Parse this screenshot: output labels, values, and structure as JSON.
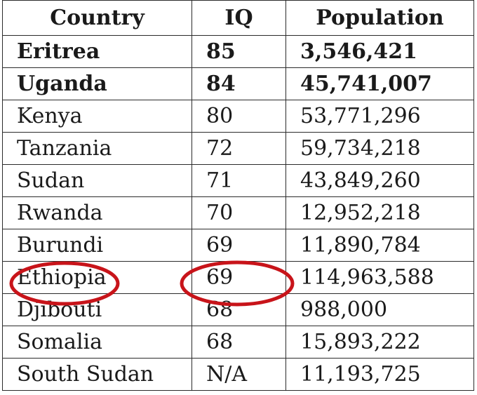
{
  "table": {
    "headers": [
      "Country",
      "IQ",
      "Population"
    ],
    "rows": [
      {
        "country": "Eritrea",
        "iq": "85",
        "population": "3,546,421",
        "bold": true
      },
      {
        "country": "Uganda",
        "iq": "84",
        "population": "45,741,007",
        "bold": true
      },
      {
        "country": "Kenya",
        "iq": "80",
        "population": "53,771,296",
        "bold": false
      },
      {
        "country": "Tanzania",
        "iq": "72",
        "population": "59,734,218",
        "bold": false
      },
      {
        "country": "Sudan",
        "iq": "71",
        "population": "43,849,260",
        "bold": false
      },
      {
        "country": "Rwanda",
        "iq": "70",
        "population": "12,952,218",
        "bold": false
      },
      {
        "country": "Burundi",
        "iq": "69",
        "population": "11,890,784",
        "bold": false
      },
      {
        "country": "Ethiopia",
        "iq": "69",
        "population": "114,963,588",
        "bold": false
      },
      {
        "country": "Djibouti",
        "iq": "68",
        "population": "988,000",
        "bold": false
      },
      {
        "country": "Somalia",
        "iq": "68",
        "population": "15,893,222",
        "bold": false
      },
      {
        "country": "South Sudan",
        "iq": "N/A",
        "population": "11,193,725",
        "bold": false
      }
    ]
  },
  "annotation": {
    "color": "#c8141a",
    "circled": [
      "Ethiopia",
      "69"
    ]
  }
}
